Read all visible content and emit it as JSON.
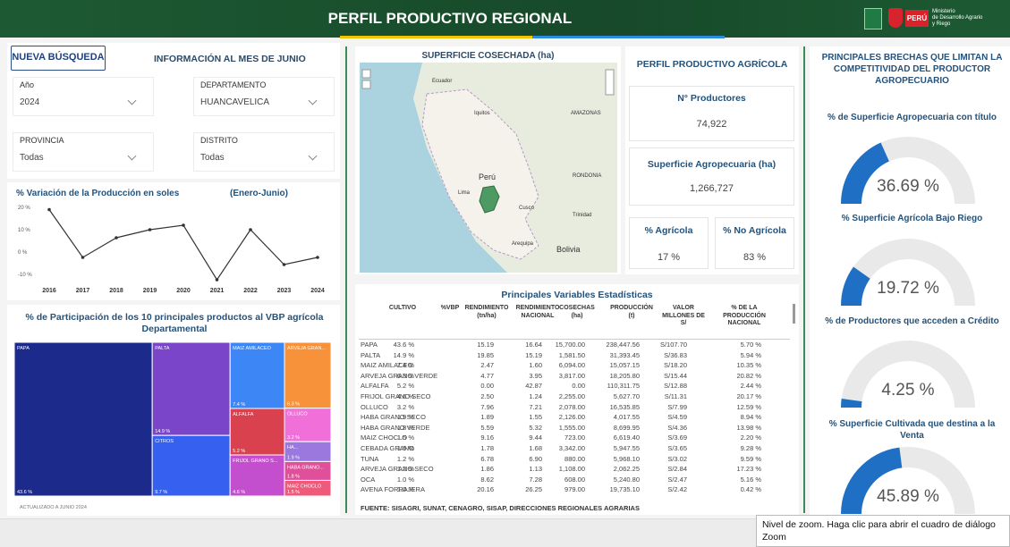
{
  "header": {
    "title": "PERFIL PRODUCTIVO REGIONAL",
    "logo_text": "PERÚ",
    "ministry": [
      "Ministerio",
      "de Desarrollo Agrario",
      "y Riego"
    ]
  },
  "filters": {
    "button": "NUEVA BÚSQUEDA",
    "info": "INFORMACIÓN AL MES DE JUNIO",
    "fields": [
      {
        "label": "Año",
        "value": "2024"
      },
      {
        "label": "DEPARTAMENTO",
        "value": "HUANCAVELICA"
      },
      {
        "label": "PROVINCIA",
        "value": "Todas"
      },
      {
        "label": "DISTRITO",
        "value": "Todas"
      }
    ]
  },
  "map": {
    "title": "SUPERFICIE COSECHADA (ha)",
    "labels": [
      "Ecuador",
      "Iquitos",
      "AMAZONAS",
      "Perú",
      "RONDONIA",
      "Lima",
      "Cusco",
      "Arequipa",
      "Bolivia",
      "Trinidad"
    ]
  },
  "kpi": {
    "title": "PERFIL PRODUCTIVO AGRÍCOLA",
    "productores": {
      "label": "N° Productores",
      "value": "74,922"
    },
    "superficie": {
      "label": "Superficie Agropecuaria (ha)",
      "value": "1,266,727"
    },
    "agricola": {
      "label": "% Agrícola",
      "value": "17 %"
    },
    "no_agricola": {
      "label": "% No Agrícola",
      "value": "83 %"
    }
  },
  "table": {
    "title": "Principales Variables Estadísticas",
    "columns": [
      "CULTIVO",
      "%VBP",
      "RENDIMIENTO (tn/ha)",
      "RENDIMIENTO NACIONAL",
      "COSECHAS (ha)",
      "PRODUCCIÓN (t)",
      "VALOR MILLONES DE S/",
      "% DE LA PRODUCCIÓN NACIONAL"
    ],
    "rows": [
      [
        "PAPA",
        "43.6 %",
        "15.19",
        "16.64",
        "15,700.00",
        "238,447.56",
        "S/107.70",
        "5.70 %"
      ],
      [
        "PALTA",
        "14.9 %",
        "19.85",
        "15.19",
        "1,581.50",
        "31,393.45",
        "S/36.83",
        "5.94 %"
      ],
      [
        "MAIZ AMILACEO",
        "7.4 %",
        "2.47",
        "1.60",
        "6,094.00",
        "15,057.15",
        "S/18.20",
        "10.35 %"
      ],
      [
        "ARVEJA GRANO VERDE",
        "6.3 %",
        "4.77",
        "3.95",
        "3,817.00",
        "18,205.80",
        "S/15.44",
        "20.82 %"
      ],
      [
        "ALFALFA",
        "5.2 %",
        "0.00",
        "42.87",
        "0.00",
        "110,311.75",
        "S/12.88",
        "2.44 %"
      ],
      [
        "FRIJOL GRANO SECO",
        "4.6 %",
        "2.50",
        "1.24",
        "2,255.00",
        "5,627.70",
        "S/11.31",
        "20.17 %"
      ],
      [
        "OLLUCO",
        "3.2 %",
        "7.96",
        "7.21",
        "2,078.00",
        "16,535.85",
        "S/7.99",
        "12.59 %"
      ],
      [
        "HABA GRANO SECO",
        "1.9 %",
        "1.89",
        "1.55",
        "2,126.00",
        "4,017.55",
        "S/4.59",
        "8.94 %"
      ],
      [
        "HABA GRANO VERDE",
        "1.8 %",
        "5.59",
        "5.32",
        "1,555.00",
        "8,699.95",
        "S/4.36",
        "13.98 %"
      ],
      [
        "MAIZ CHOCLO",
        "1.5 %",
        "9.16",
        "9.44",
        "723.00",
        "6,619.40",
        "S/3.69",
        "2.20 %"
      ],
      [
        "CEBADA GRANO",
        "1.5 %",
        "1.78",
        "1.68",
        "3,342.00",
        "5,947.55",
        "S/3.65",
        "9.28 %"
      ],
      [
        "TUNA",
        "1.2 %",
        "6.78",
        "6.90",
        "880.00",
        "5,968.10",
        "S/3.02",
        "9.59 %"
      ],
      [
        "ARVEJA GRANO SECO",
        "1.2 %",
        "1.86",
        "1.13",
        "1,108.00",
        "2,062.25",
        "S/2.84",
        "17.23 %"
      ],
      [
        "OCA",
        "1.0 %",
        "8.62",
        "7.28",
        "608.00",
        "5,240.80",
        "S/2.47",
        "5.16 %"
      ],
      [
        "AVENA FORRAJERA",
        "1.0 %",
        "20.16",
        "26.25",
        "979.00",
        "19,735.10",
        "S/2.42",
        "0.42 %"
      ]
    ],
    "source": "FUENTE: SISAGRI, SUNAT, CENAGRO, SISAP, DIRECCIONES REGIONALES AGRARIAS"
  },
  "chart_data": [
    {
      "type": "line",
      "title": "% Variación de la Producción en soles",
      "subtitle": "(Enero-Junio)",
      "categories": [
        "2016",
        "2017",
        "2018",
        "2019",
        "2020",
        "2021",
        "2022",
        "2023",
        "2024"
      ],
      "values": [
        19,
        -2.4,
        6.4,
        10,
        12,
        -12.4,
        10,
        -5.6,
        -2.4
      ],
      "color": "#333333",
      "ylim": [
        -10,
        20
      ],
      "yticks": [
        {
          "value": 20,
          "label": "20 %"
        },
        {
          "value": 10,
          "label": "10 %"
        },
        {
          "value": 0,
          "label": "0 %"
        },
        {
          "value": -10,
          "label": "-10 %"
        }
      ],
      "grid": false
    },
    {
      "type": "treemap",
      "title": "% de Participación de los 10 principales productos al VBP agrícola Departamental",
      "categories": [
        "PAPA",
        "PALTA",
        "CITROS",
        "MAIZ AMILACEO",
        "ARVEJA GRAN...",
        "ALFALFA",
        "FRIJOL GRANO S...",
        "OLLUCO",
        "HA...",
        "HABA GRANO...",
        "MAIZ CHOCLO"
      ],
      "values": [
        43.6,
        14.9,
        9.7,
        7.4,
        6.3,
        5.2,
        4.6,
        3.2,
        1.9,
        1.8,
        1.5
      ],
      "value_labels": [
        "43.6 %",
        "14.9 %",
        "9.7 %",
        "7.4 %",
        "6.3 %",
        "5.2 %",
        "4.6 %",
        "3.2 %",
        "1.9 %",
        "1.8 %",
        "1.5 %"
      ],
      "colors": [
        "#1c2a8c",
        "#7a45c8",
        "#3560f0",
        "#3d86f5",
        "#f7923a",
        "#d9414e",
        "#c34fcf",
        "#f06fd8",
        "#9a78dd",
        "#e0509a",
        "#f05a7a"
      ]
    },
    {
      "type": "gauge",
      "title": "PRINCIPALES BRECHAS QUE LIMITAN LA COMPETITIVIDAD DEL PRODUCTOR AGROPECUARIO",
      "categories": [
        "% de Superficie Agropecuaria con título",
        "% Superficie Agrícola Bajo Riego",
        "% de Productores que acceden a Crédito",
        "% Superficie Cultivada que destina a la Venta"
      ],
      "values": [
        36.69,
        19.72,
        4.25,
        45.89
      ],
      "value_labels": [
        "36.69 %",
        "19.72 %",
        "4.25 %",
        "45.89 %"
      ],
      "ylim": [
        0,
        100
      ],
      "color": "#1f6fc5"
    }
  ],
  "footer": {
    "updated": "ACTUALIZADO A JUNIO 2024",
    "tooltip": "Nivel de zoom. Haga clic para abrir el cuadro de diálogo Zoom"
  }
}
